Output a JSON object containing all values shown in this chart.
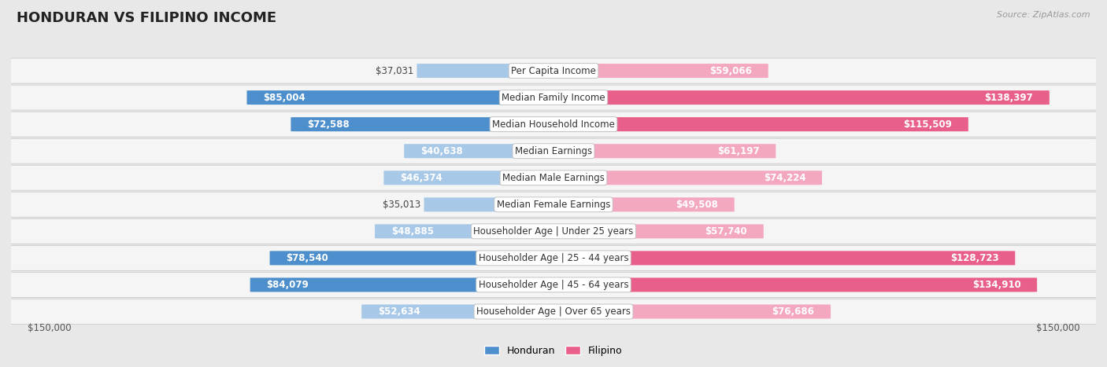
{
  "title": "HONDURAN VS FILIPINO INCOME",
  "source": "Source: ZipAtlas.com",
  "categories": [
    "Per Capita Income",
    "Median Family Income",
    "Median Household Income",
    "Median Earnings",
    "Median Male Earnings",
    "Median Female Earnings",
    "Householder Age | Under 25 years",
    "Householder Age | 25 - 44 years",
    "Householder Age | 45 - 64 years",
    "Householder Age | Over 65 years"
  ],
  "honduran": [
    37031,
    85004,
    72588,
    40638,
    46374,
    35013,
    48885,
    78540,
    84079,
    52634
  ],
  "filipino": [
    59066,
    138397,
    115509,
    61197,
    74224,
    49508,
    57740,
    128723,
    134910,
    76686
  ],
  "max_val": 150000,
  "honduran_strong": "#4d8fcc",
  "honduran_light": "#a8c8e8",
  "filipino_strong": "#e8608a",
  "filipino_light": "#f4a8c0",
  "bg_color": "#e8e8e8",
  "row_bg_color": "#f5f5f5",
  "label_fontsize": 8.5,
  "value_fontsize": 8.5,
  "title_fontsize": 13,
  "legend_honduran": "Honduran",
  "legend_filipino": "Filipino",
  "strong_threshold_hon": 70000,
  "strong_threshold_fil": 100000
}
